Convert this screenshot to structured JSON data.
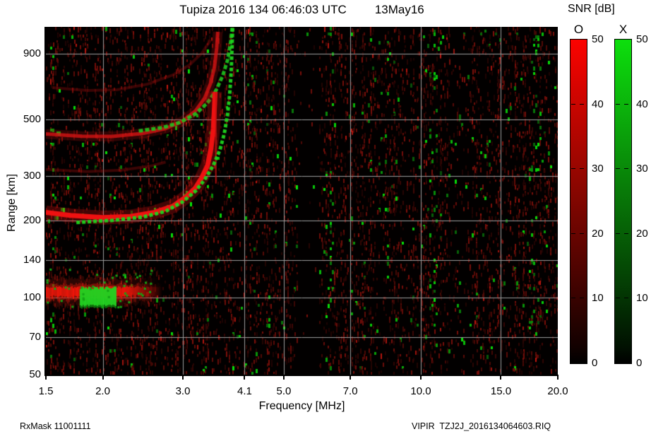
{
  "header": {
    "title_left": "Tupiza 2016 134 06:46:03 UTC",
    "title_right": "13May16"
  },
  "footer": {
    "left": "RxMask 11001111",
    "right": "VIPIR  TZJ2J_2016134064603.RIQ"
  },
  "colorbar_panel": {
    "title": "SNR [dB]",
    "bars": [
      {
        "label": "O",
        "color": "#fb0300",
        "ticks": [
          50,
          40,
          30,
          20,
          10,
          0
        ]
      },
      {
        "label": "X",
        "color": "#0ddf0d",
        "ticks": [
          50,
          40,
          30,
          20,
          10,
          0
        ]
      }
    ],
    "range": [
      0,
      50
    ]
  },
  "chart_data": {
    "type": "heatmap",
    "title": "Tupiza 2016 134 06:46:03 UTC 13May16",
    "xlabel": "Frequency [MHz]",
    "ylabel": "Range [km]",
    "x_scale": "log",
    "y_scale": "log",
    "xlim": [
      1.5,
      20.0
    ],
    "ylim": [
      50,
      1150
    ],
    "x_ticks": [
      1.5,
      2.0,
      3.0,
      4.1,
      5.0,
      7.0,
      10.0,
      15.0,
      20.0
    ],
    "x_tick_labels": [
      "1.5",
      "2.0",
      "3.0",
      "4.1",
      "5.0",
      "7.0",
      "10.0",
      "15.0",
      "20.0"
    ],
    "y_ticks": [
      900,
      500,
      300,
      200,
      140,
      100,
      70,
      50
    ],
    "x_gridlines": [
      2.0,
      3.0,
      4.1,
      5.0,
      7.0,
      10.0,
      15.0
    ],
    "y_gridlines": [
      900,
      500,
      300,
      200,
      140,
      100,
      70
    ],
    "grid_color": "#9c9c9c",
    "background": "#020000",
    "snr_units": "dB",
    "snr_range": [
      0,
      50
    ],
    "polarizations": {
      "O": "#e00000",
      "X": "#1ed41e"
    },
    "noise": {
      "red_density": 0.26,
      "green_density": 0.011,
      "quiet_bands": [
        {
          "f1": 5.35,
          "f2": 5.95,
          "mult": 0.1
        },
        {
          "f1": 11.4,
          "f2": 12.9,
          "mult": 0.45
        }
      ],
      "green_interference_columns": [
        {
          "f": 1.55,
          "d": 0.05,
          "w": 10
        },
        {
          "f": 4.2,
          "d": 0.06,
          "w": 9
        },
        {
          "f": 4.6,
          "d": 0.035,
          "w": 8
        },
        {
          "f": 6.3,
          "d": 0.07,
          "w": 10
        },
        {
          "f": 8.25,
          "d": 0.05,
          "w": 9
        },
        {
          "f": 10.7,
          "d": 0.08,
          "w": 14
        },
        {
          "f": 17.7,
          "d": 0.08,
          "w": 11
        },
        {
          "f": 18.6,
          "d": 0.03,
          "w": 8
        }
      ]
    },
    "e_region": {
      "f_start": 1.5,
      "f_end": 2.7,
      "fade_from": 2.2,
      "range_center_km": 105,
      "green_blob": {
        "f1": 1.78,
        "f2": 2.13,
        "r_top": 108,
        "r_bot": 94
      }
    },
    "traces": [
      {
        "name": "F-hop1-O-mid-spread",
        "color": "#c01010",
        "width": 4,
        "alpha": 0.3,
        "glow": false,
        "dash": null,
        "points": [
          [
            1.5,
            318
          ],
          [
            1.85,
            312
          ],
          [
            2.2,
            316
          ],
          [
            2.55,
            328
          ],
          [
            2.75,
            340
          ]
        ]
      },
      {
        "name": "F-hop3-O-faint",
        "color": "#b01010",
        "width": 4,
        "alpha": 0.32,
        "glow": false,
        "dash": null,
        "points": [
          [
            1.55,
            665
          ],
          [
            1.85,
            648
          ],
          [
            2.15,
            652
          ],
          [
            2.5,
            685
          ],
          [
            2.85,
            745
          ],
          [
            3.1,
            815
          ],
          [
            3.3,
            905
          ],
          [
            3.45,
            1020
          ]
        ]
      },
      {
        "name": "F-hop2-O",
        "color": "#d41414",
        "width": 5,
        "alpha": 0.8,
        "glow": true,
        "dash": null,
        "points": [
          [
            1.5,
            438
          ],
          [
            1.8,
            429
          ],
          [
            2.1,
            428
          ],
          [
            2.45,
            440
          ],
          [
            2.75,
            460
          ],
          [
            3.0,
            492
          ],
          [
            3.2,
            540
          ],
          [
            3.35,
            605
          ],
          [
            3.45,
            690
          ],
          [
            3.52,
            800
          ],
          [
            3.56,
            950
          ],
          [
            3.58,
            1100
          ]
        ]
      },
      {
        "name": "F-hop2-X",
        "color": "#1ec41e",
        "width": 5,
        "alpha": 0.9,
        "glow": false,
        "dash": [
          6,
          3
        ],
        "points": [
          [
            2.4,
            450
          ],
          [
            2.7,
            463
          ],
          [
            2.95,
            485
          ],
          [
            3.2,
            525
          ],
          [
            3.4,
            580
          ],
          [
            3.55,
            650
          ],
          [
            3.67,
            740
          ],
          [
            3.76,
            850
          ],
          [
            3.82,
            1000
          ],
          [
            3.85,
            1140
          ]
        ]
      },
      {
        "name": "F-hop1-O",
        "color": "#ee1111",
        "width": 7,
        "alpha": 1.0,
        "glow": true,
        "dash": null,
        "points": [
          [
            1.5,
            216
          ],
          [
            1.7,
            210
          ],
          [
            2.0,
            206
          ],
          [
            2.3,
            208
          ],
          [
            2.6,
            216
          ],
          [
            2.85,
            228
          ],
          [
            3.05,
            248
          ],
          [
            3.2,
            270
          ],
          [
            3.3,
            295
          ],
          [
            3.4,
            330
          ],
          [
            3.46,
            385
          ],
          [
            3.5,
            460
          ],
          [
            3.52,
            560
          ],
          [
            3.53,
            640
          ]
        ]
      },
      {
        "name": "F-hop1-O-spike",
        "color": "#c81212",
        "width": 2,
        "alpha": 0.85,
        "glow": false,
        "dash": null,
        "points": [
          [
            3.545,
            280
          ],
          [
            3.545,
            640
          ]
        ]
      },
      {
        "name": "F-hop1-X",
        "color": "#1ed41e",
        "width": 5,
        "alpha": 0.95,
        "glow": false,
        "dash": [
          5,
          3
        ],
        "points": [
          [
            1.75,
            197
          ],
          [
            2.1,
            201
          ],
          [
            2.45,
            207
          ],
          [
            2.75,
            218
          ],
          [
            3.0,
            238
          ],
          [
            3.2,
            262
          ],
          [
            3.35,
            290
          ],
          [
            3.5,
            330
          ],
          [
            3.62,
            380
          ],
          [
            3.7,
            440
          ],
          [
            3.76,
            520
          ],
          [
            3.8,
            620
          ],
          [
            3.83,
            760
          ],
          [
            3.85,
            1000
          ],
          [
            3.86,
            1140
          ]
        ]
      }
    ]
  }
}
